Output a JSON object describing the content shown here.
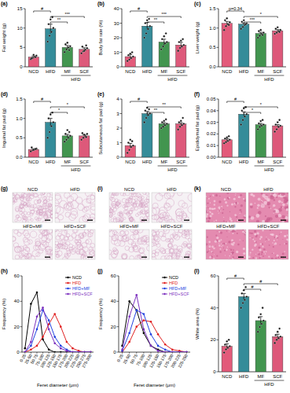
{
  "chart_data": [
    {
      "type": "bar",
      "panel_label": "(a)",
      "y_label": "Fat weight (g)",
      "categories": [
        "NCD",
        "HFD",
        "MF",
        "SCF"
      ],
      "values": [
        2.5,
        9.8,
        5.0,
        4.5
      ],
      "errors": [
        0.3,
        1.2,
        0.5,
        0.4
      ],
      "points": [
        [
          2.0,
          2.3,
          2.6,
          2.9,
          2.2,
          3.1,
          2.5
        ],
        [
          6.5,
          8.0,
          9.0,
          10.0,
          11.0,
          12.2,
          12.8
        ],
        [
          3.8,
          4.5,
          5.0,
          5.3,
          5.8,
          6.2,
          4.3
        ],
        [
          3.5,
          4.0,
          4.4,
          4.8,
          5.2,
          4.1,
          5.5
        ]
      ],
      "colors": [
        "#e0486c",
        "#1f7f8e",
        "#2e8a3c",
        "#d9476b"
      ],
      "ylim": [
        0,
        15
      ],
      "yticks": [
        0,
        5,
        10,
        15
      ],
      "annotations": [
        {
          "from": "NCD",
          "to": "HFD",
          "text": "#"
        },
        {
          "from": "HFD",
          "to": "SCF",
          "text": "***"
        },
        {
          "from": "HFD",
          "to": "MF",
          "text": "**"
        }
      ],
      "x_group": {
        "label": "HFD",
        "from": "MF",
        "to": "SCF"
      }
    },
    {
      "type": "bar",
      "panel_label": "(b)",
      "y_label": "Body fat rate (%)",
      "categories": [
        "NCD",
        "HFD",
        "MF",
        "SCF"
      ],
      "values": [
        7,
        28,
        17,
        15
      ],
      "errors": [
        1.5,
        2.5,
        2.0,
        1.8
      ],
      "points": [
        [
          4,
          5,
          6,
          7,
          8,
          9,
          10
        ],
        [
          20,
          23,
          26,
          28,
          30,
          32,
          33
        ],
        [
          12,
          14,
          16,
          17,
          19,
          21,
          23
        ],
        [
          11,
          13,
          14,
          15,
          17,
          18,
          19
        ]
      ],
      "colors": [
        "#e0486c",
        "#1f7f8e",
        "#2e8a3c",
        "#d9476b"
      ],
      "ylim": [
        0,
        40
      ],
      "yticks": [
        0,
        10,
        20,
        30,
        40
      ],
      "annotations": [
        {
          "from": "NCD",
          "to": "HFD",
          "text": "#"
        },
        {
          "from": "HFD",
          "to": "SCF",
          "text": "***"
        },
        {
          "from": "HFD",
          "to": "MF",
          "text": "**"
        }
      ],
      "x_group": {
        "label": "HFD",
        "from": "MF",
        "to": "SCF"
      }
    },
    {
      "type": "bar",
      "panel_label": "(c)",
      "y_label": "Liver weight (g)",
      "categories": [
        "NCD",
        "HFD",
        "MF",
        "SCF"
      ],
      "values": [
        1.12,
        1.1,
        0.86,
        0.93
      ],
      "errors": [
        0.05,
        0.03,
        0.03,
        0.03
      ],
      "points": [
        [
          0.95,
          1.05,
          1.1,
          1.15,
          1.2,
          1.25,
          1.08
        ],
        [
          0.98,
          1.03,
          1.08,
          1.12,
          1.16,
          1.2,
          1.1
        ],
        [
          0.75,
          0.8,
          0.85,
          0.88,
          0.92,
          0.95,
          0.82
        ],
        [
          0.85,
          0.88,
          0.92,
          0.95,
          0.98,
          1.02,
          0.9
        ]
      ],
      "colors": [
        "#e0486c",
        "#1f7f8e",
        "#2e8a3c",
        "#d9476b"
      ],
      "ylim": [
        0,
        1.5
      ],
      "yticks": [
        {
          "value": 0,
          "label": "0.0"
        },
        0.5,
        {
          "value": 1,
          "label": "1.0"
        },
        1.5
      ],
      "annotations": [
        {
          "from": "NCD",
          "to": "HFD",
          "text": "p=0.34"
        },
        {
          "from": "HFD",
          "to": "SCF",
          "text": "*"
        },
        {
          "from": "HFD",
          "to": "MF",
          "text": "***"
        }
      ],
      "x_group": {
        "label": "HFD",
        "from": "MF",
        "to": "SCF"
      }
    },
    {
      "type": "bar",
      "panel_label": "(d)",
      "y_label": "Inguinal fat pad (g)",
      "categories": [
        "NCD",
        "HFD",
        "MF",
        "SCF"
      ],
      "values": [
        0.2,
        0.9,
        0.55,
        0.55
      ],
      "errors": [
        0.02,
        0.1,
        0.04,
        0.03
      ],
      "points": [
        [
          0.15,
          0.18,
          0.2,
          0.22,
          0.25,
          0.19,
          0.21
        ],
        [
          0.5,
          0.65,
          0.8,
          0.9,
          1.0,
          1.1,
          1.15
        ],
        [
          0.4,
          0.45,
          0.5,
          0.55,
          0.6,
          0.7,
          0.65
        ],
        [
          0.45,
          0.5,
          0.55,
          0.6,
          0.62,
          0.58,
          0.52
        ]
      ],
      "colors": [
        "#e0486c",
        "#1f7f8e",
        "#2e8a3c",
        "#d9476b"
      ],
      "ylim": [
        0,
        1.5
      ],
      "yticks": [
        {
          "value": 0,
          "label": "0.0"
        },
        0.5,
        {
          "value": 1,
          "label": "1.0"
        },
        1.5
      ],
      "annotations": [
        {
          "from": "NCD",
          "to": "HFD",
          "text": "#"
        },
        {
          "from": "HFD",
          "to": "SCF",
          "text": "*"
        },
        {
          "from": "HFD",
          "to": "MF",
          "text": "*"
        }
      ],
      "x_group": {
        "label": "HFD",
        "from": "MF",
        "to": "SCF"
      }
    },
    {
      "type": "bar",
      "panel_label": "(e)",
      "y_label": "Subcutaneous fat pad (g)",
      "categories": [
        "NCD",
        "HFD",
        "MF",
        "SCF"
      ],
      "values": [
        0.8,
        3.0,
        2.3,
        2.3
      ],
      "errors": [
        0.15,
        0.15,
        0.08,
        0.08
      ],
      "points": [
        [
          0.3,
          0.5,
          0.7,
          0.8,
          1.0,
          1.2,
          1.1
        ],
        [
          2.4,
          2.7,
          2.9,
          3.0,
          3.2,
          3.4,
          3.3
        ],
        [
          2.0,
          2.1,
          2.2,
          2.3,
          2.4,
          2.5,
          2.6
        ],
        [
          1.9,
          2.1,
          2.2,
          2.3,
          2.4,
          2.5,
          2.7
        ]
      ],
      "colors": [
        "#e0486c",
        "#1f7f8e",
        "#2e8a3c",
        "#d9476b"
      ],
      "ylim": [
        0,
        4
      ],
      "yticks": [
        0,
        1,
        2,
        3,
        4
      ],
      "annotations": [
        {
          "from": "NCD",
          "to": "HFD",
          "text": "#"
        },
        {
          "from": "HFD",
          "to": "SCF",
          "text": "**"
        },
        {
          "from": "HFD",
          "to": "MF",
          "text": "**"
        }
      ],
      "x_group": {
        "label": "HFD",
        "from": "MF",
        "to": "SCF"
      }
    },
    {
      "type": "bar",
      "panel_label": "(f)",
      "y_label": "Epididymal fat pad (g)",
      "categories": [
        "NCD",
        "HFD",
        "MF",
        "SCF"
      ],
      "values": [
        0.015,
        0.037,
        0.028,
        0.027
      ],
      "errors": [
        0.001,
        0.002,
        0.001,
        0.001
      ],
      "points": [
        [
          0.012,
          0.013,
          0.014,
          0.015,
          0.016,
          0.017,
          0.018
        ],
        [
          0.028,
          0.032,
          0.035,
          0.037,
          0.04,
          0.042,
          0.043
        ],
        [
          0.024,
          0.026,
          0.027,
          0.028,
          0.029,
          0.031,
          0.032
        ],
        [
          0.022,
          0.024,
          0.026,
          0.027,
          0.028,
          0.03,
          0.032
        ]
      ],
      "colors": [
        "#e0486c",
        "#1f7f8e",
        "#2e8a3c",
        "#d9476b"
      ],
      "ylim": [
        0,
        0.05
      ],
      "yticks": [
        {
          "value": 0,
          "label": "0.00"
        },
        0.01,
        0.02,
        0.03,
        0.04,
        0.05
      ],
      "annotations": [
        {
          "from": "NCD",
          "to": "HFD",
          "text": "#"
        },
        {
          "from": "HFD",
          "to": "SCF",
          "text": "*"
        },
        {
          "from": "HFD",
          "to": "MF",
          "text": "*"
        }
      ],
      "x_group": {
        "label": "HFD",
        "from": "MF",
        "to": "SCF"
      }
    },
    {
      "type": "line",
      "panel_label": "(h)",
      "x_label": "Feret diameter (μm)",
      "y_label": "Frequency (%)",
      "categories": [
        "0-25",
        "25-50",
        "50-75",
        "75-100",
        "100-125",
        "125-150",
        "150-175",
        "175-200",
        "200-225",
        "225-250",
        "250-275",
        "275-300"
      ],
      "series": [
        {
          "name": "NCD",
          "color": "#000000",
          "values": [
            3,
            38,
            47,
            10,
            2,
            0,
            0,
            0,
            0,
            0,
            0,
            0
          ]
        },
        {
          "name": "HFD",
          "color": "#e02020",
          "values": [
            0,
            2,
            5,
            12,
            22,
            30,
            20,
            8,
            3,
            1,
            0,
            0
          ]
        },
        {
          "name": "HFD+MF",
          "color": "#2040e0",
          "values": [
            0,
            5,
            18,
            33,
            25,
            12,
            5,
            2,
            0,
            0,
            0,
            0
          ]
        },
        {
          "name": "HFD+SCF",
          "color": "#7b2fbe",
          "values": [
            0,
            8,
            28,
            35,
            18,
            7,
            3,
            1,
            0,
            0,
            0,
            0
          ]
        }
      ],
      "ylim": [
        0,
        60
      ],
      "yticks": [
        0,
        20,
        40,
        60
      ],
      "legend": "upper right",
      "marker": "circle"
    },
    {
      "type": "line",
      "panel_label": "(j)",
      "x_label": "Feret diameter (μm)",
      "y_label": "Frequency (%)",
      "categories": [
        "0-25",
        "25-50",
        "50-75",
        "75-100",
        "100-125",
        "125-150",
        "150-175",
        "175-200",
        "200-225",
        "225-250"
      ],
      "series": [
        {
          "name": "NCD",
          "color": "#000000",
          "values": [
            5,
            40,
            33,
            15,
            5,
            2,
            0,
            0,
            0,
            0
          ]
        },
        {
          "name": "HFD",
          "color": "#e02020",
          "values": [
            0,
            8,
            20,
            25,
            24,
            14,
            6,
            2,
            1,
            0
          ]
        },
        {
          "name": "HFD+MF",
          "color": "#2040e0",
          "values": [
            1,
            15,
            33,
            30,
            14,
            5,
            2,
            0,
            0,
            0
          ]
        },
        {
          "name": "HFD+SCF",
          "color": "#7b2fbe",
          "values": [
            2,
            28,
            45,
            18,
            5,
            1,
            0,
            0,
            0,
            0
          ]
        }
      ],
      "ylim": [
        0,
        60
      ],
      "yticks": [
        0,
        20,
        40,
        60
      ],
      "legend": "upper right",
      "marker": "circle"
    },
    {
      "type": "bar",
      "panel_label": "(l)",
      "y_label": "White area (%)",
      "categories": [
        "NCD",
        "HFD",
        "MF",
        "SCF"
      ],
      "values": [
        16,
        47,
        32,
        22
      ],
      "errors": [
        1.5,
        2.0,
        2.5,
        1.5
      ],
      "points": [
        [
          12,
          14,
          15,
          16,
          17,
          19,
          20
        ],
        [
          40,
          43,
          45,
          47,
          49,
          51,
          53
        ],
        [
          25,
          28,
          30,
          32,
          34,
          36,
          40
        ],
        [
          18,
          20,
          21,
          22,
          23,
          25,
          27
        ]
      ],
      "colors": [
        "#e0486c",
        "#1f7f8e",
        "#2e8a3c",
        "#d9476b"
      ],
      "ylim": [
        0,
        60
      ],
      "yticks": [
        0,
        20,
        40,
        60
      ],
      "annotations": [
        {
          "from": "NCD",
          "to": "HFD",
          "text": "#"
        },
        {
          "from": "HFD",
          "to": "SCF",
          "text": "#"
        },
        {
          "from": "HFD",
          "to": "MF",
          "text": "#"
        }
      ],
      "x_group": {
        "label": "HFD",
        "from": "MF",
        "to": "SCF"
      }
    }
  ],
  "image_panels": [
    {
      "panel_label": "(g)",
      "labels": [
        "NCD",
        "HFD",
        "HFD+MF",
        "HFD+SCF"
      ],
      "color": "#d4a0c2"
    },
    {
      "panel_label": "(i)",
      "labels": [
        "NCD",
        "HFD",
        "HFD+MF",
        "HFD+SCF"
      ],
      "color": "#d4a0c2"
    },
    {
      "panel_label": "(k)",
      "labels": [
        "NCD",
        "HFD",
        "HFD+MF",
        "HFD+SCF"
      ],
      "color": "#e48bb0"
    }
  ]
}
